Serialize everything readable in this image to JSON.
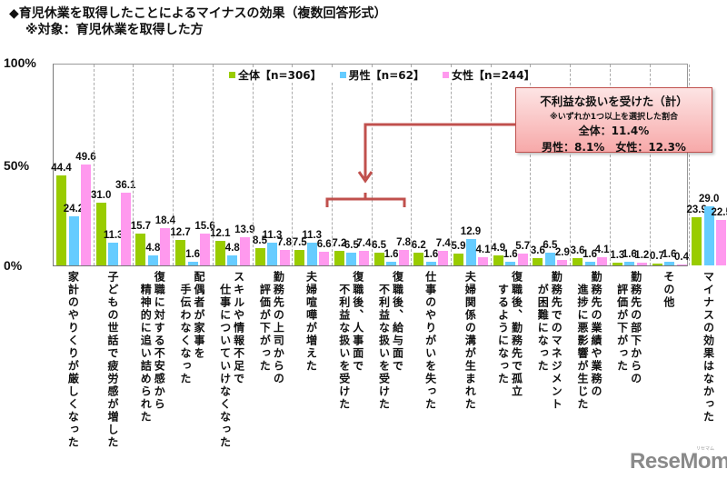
{
  "header": {
    "title": "◆育児休業を取得したことによるマイナスの効果（複数回答形式）",
    "subtitle": "※対象：育児休業を取得した方"
  },
  "axis": {
    "yticks": [
      "100%",
      "50%",
      "0%"
    ]
  },
  "legend": {
    "items": [
      {
        "label": "全体【n=306】",
        "color": "#99cc00"
      },
      {
        "label": "男性【n=62】",
        "color": "#66ccff"
      },
      {
        "label": "女性【n=244】",
        "color": "#ff99ee"
      }
    ]
  },
  "callout": {
    "title": "不利益な扱いを受けた（計）",
    "note": "※いずれか1つ以上を選択した割合",
    "total": "全体：11.4%",
    "by_gender": "男性：8.1%　女性：12.3%"
  },
  "categories": [
    {
      "lines": [
        "家計のやりくりが厳しくなった"
      ]
    },
    {
      "lines": [
        "子どもの世話で疲労感が増した"
      ]
    },
    {
      "lines": [
        "復職に対する不安感から",
        "精神的に追い詰められた"
      ]
    },
    {
      "lines": [
        "配偶者が家事を",
        "手伝わなくなった"
      ]
    },
    {
      "lines": [
        "スキルや情報不足で",
        "仕事についていけなくなった"
      ]
    },
    {
      "lines": [
        "勤務先の上司からの",
        "評価が下がった"
      ]
    },
    {
      "lines": [
        "夫婦喧嘩が増えた"
      ]
    },
    {
      "lines": [
        "復職後、人事面で",
        "不利益な扱いを受けた"
      ]
    },
    {
      "lines": [
        "復職後、給与面で",
        "不利益な扱いを受けた"
      ]
    },
    {
      "lines": [
        "仕事のやりがいを失った"
      ]
    },
    {
      "lines": [
        "夫婦関係の溝が生まれた"
      ]
    },
    {
      "lines": [
        "復職後、勤務先で孤立",
        "するようになった"
      ]
    },
    {
      "lines": [
        "勤務先でのマネジメント",
        "が困難になった"
      ]
    },
    {
      "lines": [
        "勤務先の業績や業務の",
        "進捗に悪影響が生じた"
      ]
    },
    {
      "lines": [
        "勤務先の部下からの",
        "評価が下がった"
      ]
    },
    {
      "lines": [
        "その他"
      ]
    },
    {
      "lines": [
        "マイナスの効果はなかった"
      ]
    }
  ],
  "logo": {
    "text": "ReseMom",
    "small": "リセマム"
  },
  "chart_data": {
    "type": "bar",
    "title": "育児休業を取得したことによるマイナスの効果（複数回答形式）",
    "subtitle": "※対象：育児休業を取得した方",
    "xlabel": "",
    "ylabel": "",
    "ylim": [
      0,
      100
    ],
    "yticks": [
      0,
      50,
      100
    ],
    "grid": "vertical dashed category dividers",
    "legend_position": "top",
    "categories": [
      "家計のやりくりが厳しくなった",
      "子どもの世話で疲労感が増した",
      "復職に対する不安感から精神的に追い詰められた",
      "配偶者が家事を手伝わなくなった",
      "スキルや情報不足で仕事についていけなくなった",
      "勤務先の上司からの評価が下がった",
      "夫婦喧嘩が増えた",
      "復職後、人事面で不利益な扱いを受けた",
      "復職後、給与面で不利益な扱いを受けた",
      "仕事のやりがいを失った",
      "夫婦関係の溝が生まれた",
      "復職後、勤務先で孤立するようになった",
      "勤務先でのマネジメントが困難になった",
      "勤務先の業績や業務の進捗に悪影響が生じた",
      "勤務先の部下からの評価が下がった",
      "その他",
      "マイナスの効果はなかった"
    ],
    "series": [
      {
        "name": "全体【n=306】",
        "color": "#99cc00",
        "values": [
          44.4,
          31.0,
          15.7,
          12.7,
          12.1,
          8.5,
          7.5,
          7.2,
          6.5,
          6.2,
          5.9,
          4.9,
          3.6,
          3.6,
          1.3,
          0.7,
          23.9
        ]
      },
      {
        "name": "男性【n=62】",
        "color": "#66ccff",
        "values": [
          24.2,
          11.3,
          4.8,
          1.6,
          4.8,
          11.3,
          11.3,
          6.5,
          1.6,
          1.6,
          12.9,
          1.6,
          6.5,
          1.6,
          1.6,
          1.6,
          29.0
        ]
      },
      {
        "name": "女性【n=244】",
        "color": "#ff99ee",
        "values": [
          49.6,
          36.1,
          18.4,
          15.6,
          13.9,
          7.8,
          6.6,
          7.4,
          7.8,
          7.4,
          4.1,
          5.7,
          2.9,
          4.1,
          1.2,
          0.4,
          22.5
        ]
      }
    ],
    "annotations": [
      {
        "text": "不利益な扱いを受けた（計） ※いずれか1つ以上を選択した割合 全体：11.4% 男性：8.1% 女性：12.3%",
        "points_to": [
          "復職後、人事面で不利益な扱いを受けた",
          "復職後、給与面で不利益な扱いを受けた"
        ]
      }
    ]
  }
}
